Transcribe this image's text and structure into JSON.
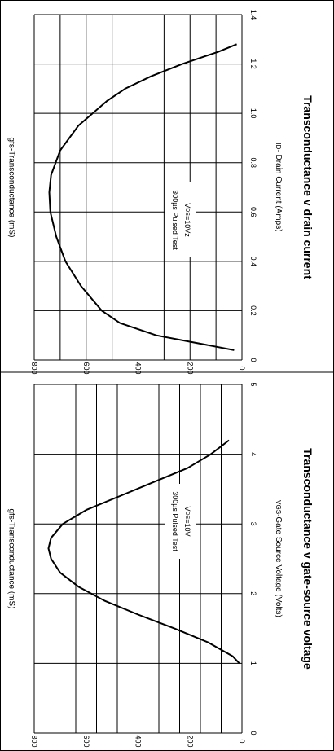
{
  "chart_data": [
    {
      "type": "line",
      "title": "Transconductance v drain current",
      "xlabel_sub": "D",
      "xlabel": "- Drain Current (Amps)",
      "ylabel": "gfs-Transconductance (mS)",
      "xlim": [
        0,
        1.4
      ],
      "ylim": [
        0,
        800
      ],
      "x_ticks": [
        "0",
        "0.2",
        "0.4",
        "0.6",
        "0.8",
        "1.0",
        "1.2",
        "1.4"
      ],
      "y_ticks": [
        "0",
        "200",
        "400",
        "600",
        "800"
      ],
      "annotation": {
        "line1": "300µs Pulsed Test",
        "line2_sub": "DS",
        "line2": "=10Vz"
      },
      "series": [
        {
          "x": [
            0.04,
            0.06,
            0.1,
            0.15,
            0.2,
            0.3,
            0.4,
            0.5,
            0.6,
            0.68,
            0.75,
            0.85,
            0.95,
            1.05,
            1.1,
            1.15,
            1.2,
            1.25,
            1.28
          ],
          "y": [
            30,
            130,
            330,
            470,
            540,
            620,
            680,
            715,
            738,
            742,
            735,
            700,
            630,
            520,
            450,
            350,
            230,
            90,
            20
          ]
        }
      ]
    },
    {
      "type": "line",
      "title": "Transconductance v gate-source voltage",
      "xlabel_sub": "GS",
      "xlabel": "-Gate Source Voltage (Volts)",
      "ylabel": "gfs-Transconductance (mS)",
      "xlim": [
        0,
        5
      ],
      "ylim": [
        0,
        800
      ],
      "x_ticks": [
        "0",
        "1",
        "2",
        "3",
        "4",
        "5"
      ],
      "y_ticks": [
        "0",
        "200",
        "400",
        "600",
        "800"
      ],
      "annotation": {
        "line1": "300µs Pulsed Test",
        "line2_sub": "DS",
        "line2": "=10V"
      },
      "series": [
        {
          "x": [
            1.0,
            1.1,
            1.3,
            1.5,
            1.7,
            1.9,
            2.1,
            2.3,
            2.5,
            2.65,
            2.8,
            3.0,
            3.2,
            3.4,
            3.6,
            3.8,
            4.0,
            4.2
          ],
          "y": [
            10,
            35,
            130,
            260,
            400,
            530,
            630,
            700,
            735,
            745,
            735,
            690,
            600,
            470,
            340,
            210,
            120,
            50
          ]
        }
      ]
    }
  ]
}
